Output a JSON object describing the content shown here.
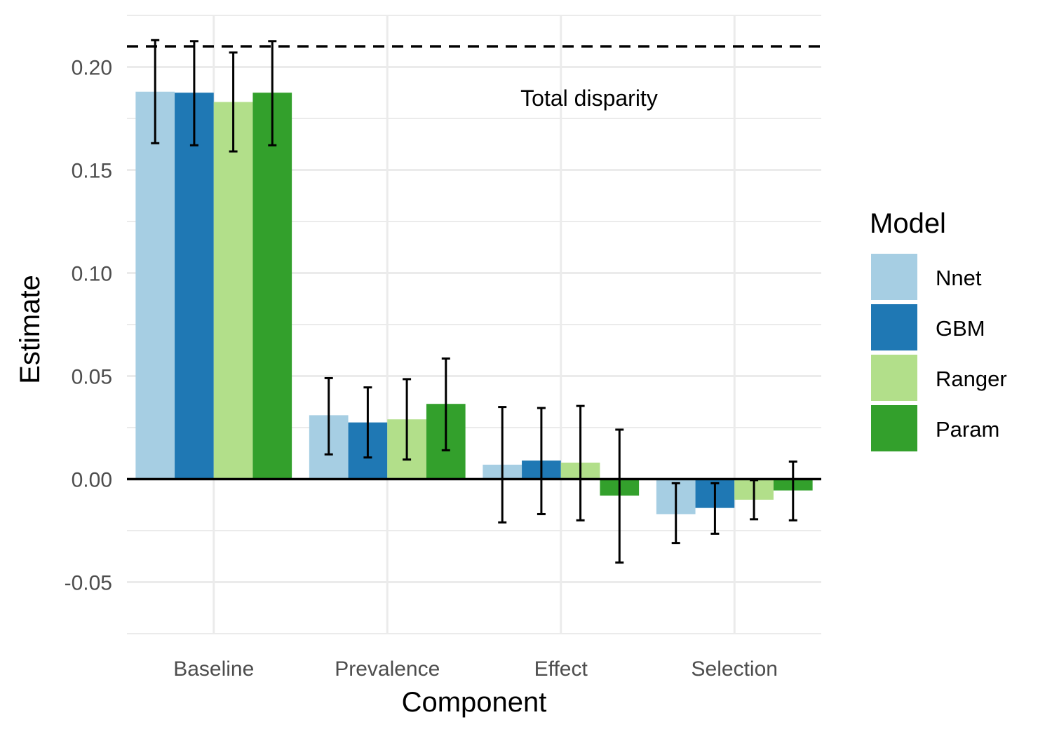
{
  "chart_data": {
    "type": "bar",
    "xlabel": "Component",
    "ylabel": "Estimate",
    "categories": [
      "Baseline",
      "Prevalence",
      "Effect",
      "Selection"
    ],
    "ylim": [
      -0.075,
      0.225
    ],
    "yticks": [
      -0.05,
      0.0,
      0.05,
      0.1,
      0.15,
      0.2
    ],
    "ytick_labels": [
      "-0.05",
      "0.00",
      "0.05",
      "0.10",
      "0.15",
      "0.20"
    ],
    "grid": true,
    "series": [
      {
        "name": "Nnet",
        "color": "#a6cee3",
        "values": [
          0.188,
          0.031,
          0.007,
          -0.017
        ],
        "lower": [
          0.163,
          0.012,
          -0.021,
          -0.031
        ],
        "upper": [
          0.213,
          0.049,
          0.035,
          -0.002
        ]
      },
      {
        "name": "GBM",
        "color": "#1f78b4",
        "values": [
          0.1875,
          0.0275,
          0.009,
          -0.014
        ],
        "lower": [
          0.162,
          0.0105,
          -0.017,
          -0.0265
        ],
        "upper": [
          0.2125,
          0.0445,
          0.0345,
          -0.002
        ]
      },
      {
        "name": "Ranger",
        "color": "#b2df8a",
        "values": [
          0.183,
          0.029,
          0.008,
          -0.01
        ],
        "lower": [
          0.159,
          0.0095,
          -0.02,
          -0.0195
        ],
        "upper": [
          0.207,
          0.0485,
          0.0355,
          -0.0005
        ]
      },
      {
        "name": "Param",
        "color": "#33a02c",
        "values": [
          0.1875,
          0.0365,
          -0.008,
          -0.0055
        ],
        "lower": [
          0.162,
          0.014,
          -0.0405,
          -0.02
        ],
        "upper": [
          0.2125,
          0.0585,
          0.024,
          0.0085
        ]
      }
    ],
    "reference_line": {
      "y": 0.21,
      "style": "dashed",
      "label": "Total disparity"
    },
    "legend": {
      "title": "Model",
      "position": "right"
    }
  }
}
